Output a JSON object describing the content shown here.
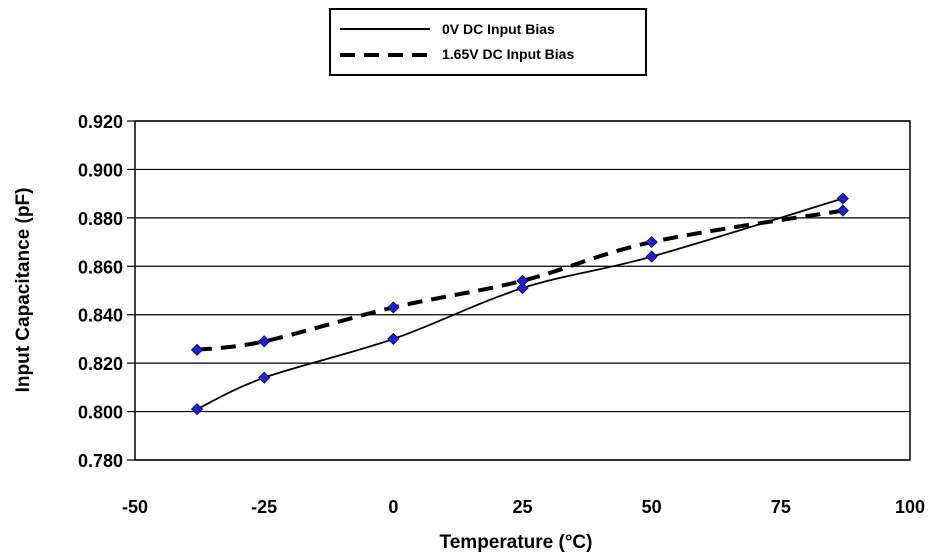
{
  "chart_data": {
    "type": "line",
    "xlabel": "Temperature (°C)",
    "ylabel": "Input Capacitance (pF)",
    "xlim": [
      -50,
      100
    ],
    "ylim": [
      0.78,
      0.92
    ],
    "x_ticks": [
      "-50",
      "-25",
      "0",
      "25",
      "50",
      "75",
      "100"
    ],
    "y_ticks": [
      "0.920",
      "0.900",
      "0.880",
      "0.860",
      "0.840",
      "0.820",
      "0.800",
      "0.780"
    ],
    "grid": "horizontal",
    "legend_position": "top-center",
    "series": [
      {
        "name": "0V DC Input Bias",
        "line_style": "solid",
        "marker": "diamond",
        "marker_color": "#1f1fd6",
        "x": [
          -38,
          -25,
          0,
          25,
          50,
          87
        ],
        "y": [
          0.801,
          0.814,
          0.83,
          0.851,
          0.864,
          0.888
        ]
      },
      {
        "name": "1.65V DC Input Bias",
        "line_style": "dashed",
        "marker": "diamond",
        "marker_color": "#1f1fd6",
        "x": [
          -38,
          -25,
          0,
          25,
          50,
          87
        ],
        "y": [
          0.8255,
          0.829,
          0.843,
          0.854,
          0.87,
          0.883
        ]
      }
    ]
  }
}
